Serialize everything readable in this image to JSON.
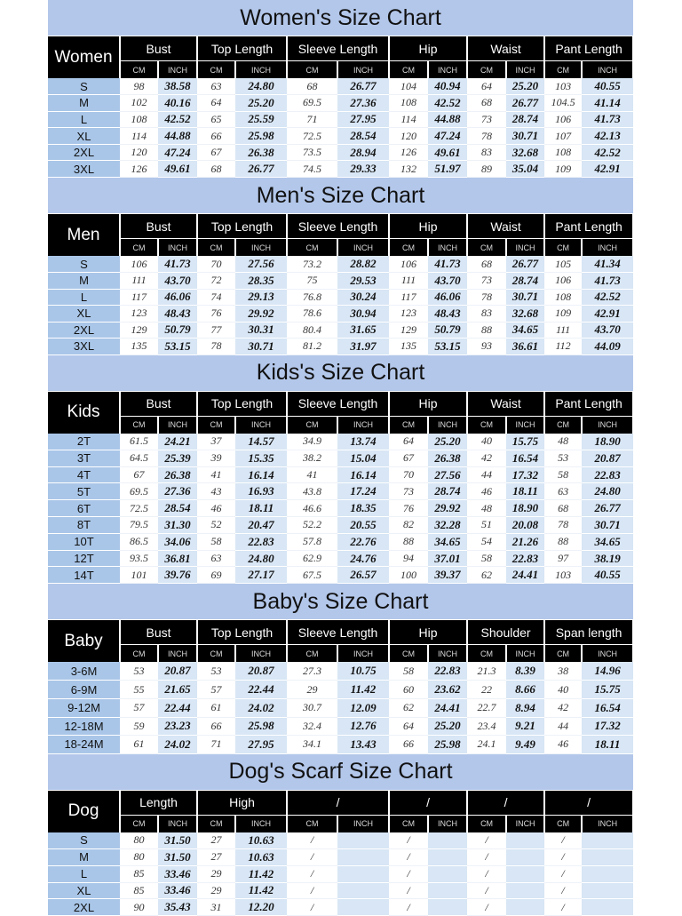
{
  "unit_labels": {
    "cm": "CM",
    "inch": "INCH"
  },
  "sections": [
    {
      "title": "Women's Size Chart",
      "label": "Women",
      "columns": [
        "Bust",
        "Top Length",
        "Sleeve Length",
        "Hip",
        "Waist",
        "Pant Length"
      ],
      "rows": [
        {
          "size": "S",
          "values": [
            "98",
            "38.58",
            "63",
            "24.80",
            "68",
            "26.77",
            "104",
            "40.94",
            "64",
            "25.20",
            "103",
            "40.55"
          ]
        },
        {
          "size": "M",
          "values": [
            "102",
            "40.16",
            "64",
            "25.20",
            "69.5",
            "27.36",
            "108",
            "42.52",
            "68",
            "26.77",
            "104.5",
            "41.14"
          ]
        },
        {
          "size": "L",
          "values": [
            "108",
            "42.52",
            "65",
            "25.59",
            "71",
            "27.95",
            "114",
            "44.88",
            "73",
            "28.74",
            "106",
            "41.73"
          ]
        },
        {
          "size": "XL",
          "values": [
            "114",
            "44.88",
            "66",
            "25.98",
            "72.5",
            "28.54",
            "120",
            "47.24",
            "78",
            "30.71",
            "107",
            "42.13"
          ]
        },
        {
          "size": "2XL",
          "values": [
            "120",
            "47.24",
            "67",
            "26.38",
            "73.5",
            "28.94",
            "126",
            "49.61",
            "83",
            "32.68",
            "108",
            "42.52"
          ]
        },
        {
          "size": "3XL",
          "values": [
            "126",
            "49.61",
            "68",
            "26.77",
            "74.5",
            "29.33",
            "132",
            "51.97",
            "89",
            "35.04",
            "109",
            "42.91"
          ]
        }
      ]
    },
    {
      "title": "Men's Size Chart",
      "label": "Men",
      "columns": [
        "Bust",
        "Top Length",
        "Sleeve Length",
        "Hip",
        "Waist",
        "Pant Length"
      ],
      "rows": [
        {
          "size": "S",
          "values": [
            "106",
            "41.73",
            "70",
            "27.56",
            "73.2",
            "28.82",
            "106",
            "41.73",
            "68",
            "26.77",
            "105",
            "41.34"
          ]
        },
        {
          "size": "M",
          "values": [
            "111",
            "43.70",
            "72",
            "28.35",
            "75",
            "29.53",
            "111",
            "43.70",
            "73",
            "28.74",
            "106",
            "41.73"
          ]
        },
        {
          "size": "L",
          "values": [
            "117",
            "46.06",
            "74",
            "29.13",
            "76.8",
            "30.24",
            "117",
            "46.06",
            "78",
            "30.71",
            "108",
            "42.52"
          ]
        },
        {
          "size": "XL",
          "values": [
            "123",
            "48.43",
            "76",
            "29.92",
            "78.6",
            "30.94",
            "123",
            "48.43",
            "83",
            "32.68",
            "109",
            "42.91"
          ]
        },
        {
          "size": "2XL",
          "values": [
            "129",
            "50.79",
            "77",
            "30.31",
            "80.4",
            "31.65",
            "129",
            "50.79",
            "88",
            "34.65",
            "111",
            "43.70"
          ]
        },
        {
          "size": "3XL",
          "values": [
            "135",
            "53.15",
            "78",
            "30.71",
            "81.2",
            "31.97",
            "135",
            "53.15",
            "93",
            "36.61",
            "112",
            "44.09"
          ]
        }
      ]
    },
    {
      "title": "Kids's  Size Chart",
      "label": "Kids",
      "columns": [
        "Bust",
        "Top Length",
        "Sleeve Length",
        "Hip",
        "Waist",
        "Pant Length"
      ],
      "rows": [
        {
          "size": "2T",
          "values": [
            "61.5",
            "24.21",
            "37",
            "14.57",
            "34.9",
            "13.74",
            "64",
            "25.20",
            "40",
            "15.75",
            "48",
            "18.90"
          ]
        },
        {
          "size": "3T",
          "values": [
            "64.5",
            "25.39",
            "39",
            "15.35",
            "38.2",
            "15.04",
            "67",
            "26.38",
            "42",
            "16.54",
            "53",
            "20.87"
          ]
        },
        {
          "size": "4T",
          "values": [
            "67",
            "26.38",
            "41",
            "16.14",
            "41",
            "16.14",
            "70",
            "27.56",
            "44",
            "17.32",
            "58",
            "22.83"
          ]
        },
        {
          "size": "5T",
          "values": [
            "69.5",
            "27.36",
            "43",
            "16.93",
            "43.8",
            "17.24",
            "73",
            "28.74",
            "46",
            "18.11",
            "63",
            "24.80"
          ]
        },
        {
          "size": "6T",
          "values": [
            "72.5",
            "28.54",
            "46",
            "18.11",
            "46.6",
            "18.35",
            "76",
            "29.92",
            "48",
            "18.90",
            "68",
            "26.77"
          ]
        },
        {
          "size": "8T",
          "values": [
            "79.5",
            "31.30",
            "52",
            "20.47",
            "52.2",
            "20.55",
            "82",
            "32.28",
            "51",
            "20.08",
            "78",
            "30.71"
          ]
        },
        {
          "size": "10T",
          "values": [
            "86.5",
            "34.06",
            "58",
            "22.83",
            "57.8",
            "22.76",
            "88",
            "34.65",
            "54",
            "21.26",
            "88",
            "34.65"
          ]
        },
        {
          "size": "12T",
          "values": [
            "93.5",
            "36.81",
            "63",
            "24.80",
            "62.9",
            "24.76",
            "94",
            "37.01",
            "58",
            "22.83",
            "97",
            "38.19"
          ]
        },
        {
          "size": "14T",
          "values": [
            "101",
            "39.76",
            "69",
            "27.17",
            "67.5",
            "26.57",
            "100",
            "39.37",
            "62",
            "24.41",
            "103",
            "40.55"
          ]
        }
      ]
    },
    {
      "title": "Baby's Size Chart",
      "label": "Baby",
      "columns": [
        "Bust",
        "Top Length",
        "Sleeve Length",
        "Hip",
        "Shoulder",
        "Span length"
      ],
      "rows": [
        {
          "size": "3-6M",
          "values": [
            "53",
            "20.87",
            "53",
            "20.87",
            "27.3",
            "10.75",
            "58",
            "22.83",
            "21.3",
            "8.39",
            "38",
            "14.96"
          ]
        },
        {
          "size": "6-9M",
          "values": [
            "55",
            "21.65",
            "57",
            "22.44",
            "29",
            "11.42",
            "60",
            "23.62",
            "22",
            "8.66",
            "40",
            "15.75"
          ]
        },
        {
          "size": "9-12M",
          "values": [
            "57",
            "22.44",
            "61",
            "24.02",
            "30.7",
            "12.09",
            "62",
            "24.41",
            "22.7",
            "8.94",
            "42",
            "16.54"
          ]
        },
        {
          "size": "12-18M",
          "values": [
            "59",
            "23.23",
            "66",
            "25.98",
            "32.4",
            "12.76",
            "64",
            "25.20",
            "23.4",
            "9.21",
            "44",
            "17.32"
          ]
        },
        {
          "size": "18-24M",
          "values": [
            "61",
            "24.02",
            "71",
            "27.95",
            "34.1",
            "13.43",
            "66",
            "25.98",
            "24.1",
            "9.49",
            "46",
            "18.11"
          ]
        }
      ]
    },
    {
      "title": "Dog's Scarf  Size Chart",
      "label": "Dog",
      "columns": [
        "Length",
        "High",
        "/",
        "/",
        "/",
        "/"
      ],
      "rows": [
        {
          "size": "S",
          "values": [
            "80",
            "31.50",
            "27",
            "10.63",
            "/",
            "",
            "/",
            "",
            "/",
            "",
            "/",
            ""
          ]
        },
        {
          "size": "M",
          "values": [
            "80",
            "31.50",
            "27",
            "10.63",
            "/",
            "",
            "/",
            "",
            "/",
            "",
            "/",
            ""
          ]
        },
        {
          "size": "L",
          "values": [
            "85",
            "33.46",
            "29",
            "11.42",
            "/",
            "",
            "/",
            "",
            "/",
            "",
            "/",
            ""
          ]
        },
        {
          "size": "XL",
          "values": [
            "85",
            "33.46",
            "29",
            "11.42",
            "/",
            "",
            "/",
            "",
            "/",
            "",
            "/",
            ""
          ]
        },
        {
          "size": "2XL",
          "values": [
            "90",
            "35.43",
            "31",
            "12.20",
            "/",
            "",
            "/",
            "",
            "/",
            "",
            "/",
            ""
          ]
        }
      ]
    }
  ]
}
